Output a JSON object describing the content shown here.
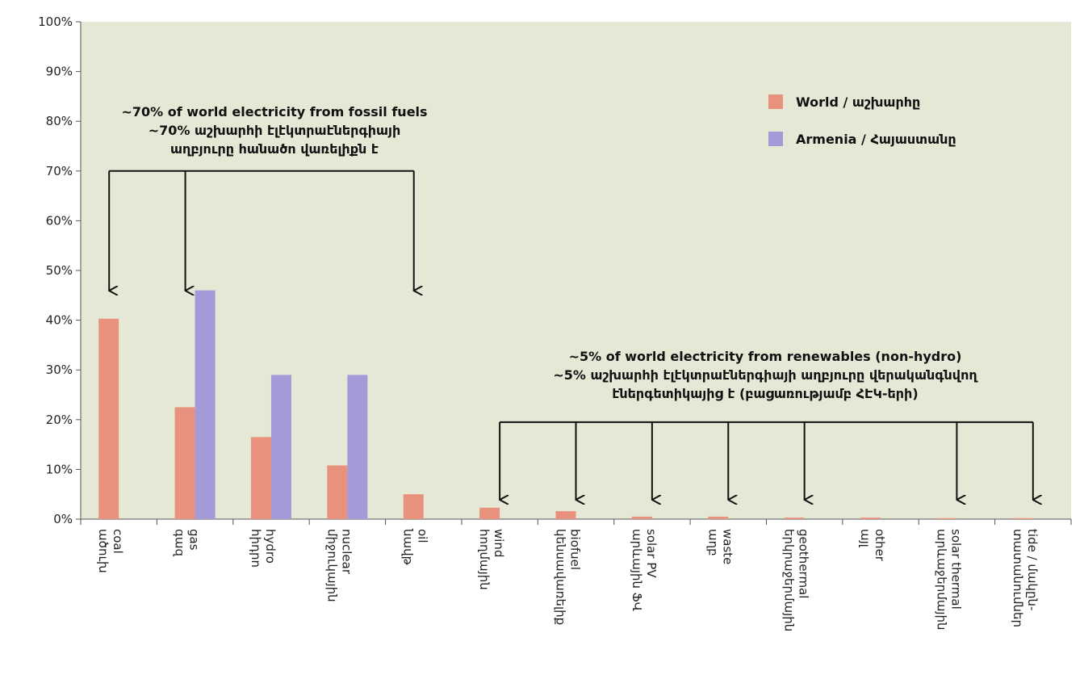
{
  "chart_data": {
    "type": "bar",
    "title": "",
    "xlabel": "",
    "ylabel": "",
    "ylim": [
      0,
      100
    ],
    "y_ticks": [
      "0%",
      "10%",
      "20%",
      "30%",
      "40%",
      "50%",
      "60%",
      "70%",
      "80%",
      "90%",
      "100%"
    ],
    "grid": false,
    "legend_position": "top-right",
    "categories": [
      {
        "en": "coal",
        "hy": "ածուխ"
      },
      {
        "en": "gas",
        "hy": "գազ"
      },
      {
        "en": "hydro",
        "hy": "հիդրո"
      },
      {
        "en": "nuclear",
        "hy": "միջուկային"
      },
      {
        "en": "oil",
        "hy": "նավթ"
      },
      {
        "en": "wind",
        "hy": "հողմային"
      },
      {
        "en": "biofuel",
        "hy": "կենսավառելիք"
      },
      {
        "en": "solar PV",
        "hy": "արևային ՖՎ"
      },
      {
        "en": "waste",
        "hy": "աղբ"
      },
      {
        "en": "geothermal",
        "hy": "երկրաջերմային"
      },
      {
        "en": "other",
        "hy": "այլ"
      },
      {
        "en": "solar thermal",
        "hy": "արևաջերմային"
      },
      {
        "en": "tide / մակըն-",
        "hy": "տատանումներ"
      }
    ],
    "series": [
      {
        "name": "World / աշխարհը",
        "color": "#e8917d",
        "values": [
          40.3,
          22.5,
          16.5,
          10.8,
          5.0,
          2.3,
          1.6,
          0.5,
          0.5,
          0.3,
          0.3,
          0.2,
          0.2
        ]
      },
      {
        "name": "Armenia / Հայաստանը",
        "color": "#a49ad8",
        "values": [
          0,
          46.0,
          29.0,
          29.0,
          0,
          0,
          0,
          0,
          0,
          0,
          0,
          0,
          0
        ]
      }
    ],
    "annotations": {
      "fossil": {
        "lines": [
          "~70% of world electricity from fossil fuels",
          "~70% աշխարհի էլէկտրաէներգիայի",
          "աղբյուրը հանածո վառելիքն է"
        ],
        "bracket_level": 70,
        "targets": [
          0,
          1,
          4
        ]
      },
      "renewables": {
        "lines": [
          "~5% of world electricity from renewables (non-hydro)",
          "~5% աշխարհի էլէկտրաէներգիայի աղբյուրը վերականգնվող",
          "էներգետիկայից է (բացառությամբ ՀԷԿ-երի)"
        ],
        "bracket_level": 19.5,
        "targets": [
          5,
          6,
          7,
          8,
          9,
          11,
          12
        ]
      }
    },
    "colors": {
      "plot_bg": "#e6e8d6",
      "axis": "#555555",
      "text": "#111111"
    }
  }
}
